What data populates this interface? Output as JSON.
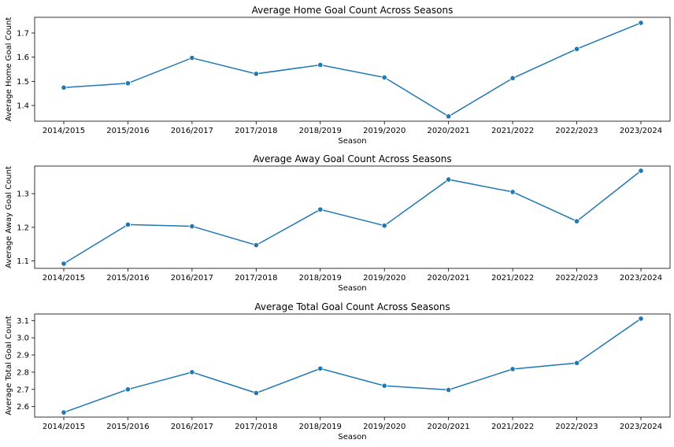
{
  "chart_data": [
    {
      "type": "line",
      "title": "Average Home Goal Count Across Seasons",
      "xlabel": "Season",
      "ylabel": "Average Home Goal Count",
      "categories": [
        "2014/2015",
        "2015/2016",
        "2016/2017",
        "2017/2018",
        "2018/2019",
        "2019/2020",
        "2020/2021",
        "2021/2022",
        "2022/2023",
        "2023/2024"
      ],
      "values": [
        1.474,
        1.492,
        1.597,
        1.531,
        1.568,
        1.516,
        1.355,
        1.513,
        1.634,
        1.742
      ],
      "ylim": [
        1.335,
        1.765
      ],
      "yticks": [
        1.4,
        1.5,
        1.6,
        1.7
      ],
      "grid": false,
      "color": "#1f77b4"
    },
    {
      "type": "line",
      "title": "Average Away Goal Count Across Seasons",
      "xlabel": "Season",
      "ylabel": "Average Away Goal Count",
      "categories": [
        "2014/2015",
        "2015/2016",
        "2016/2017",
        "2017/2018",
        "2018/2019",
        "2019/2020",
        "2020/2021",
        "2021/2022",
        "2022/2023",
        "2023/2024"
      ],
      "values": [
        1.092,
        1.208,
        1.203,
        1.147,
        1.253,
        1.205,
        1.342,
        1.305,
        1.218,
        1.368
      ],
      "ylim": [
        1.078,
        1.382
      ],
      "yticks": [
        1.1,
        1.2,
        1.3
      ],
      "grid": false,
      "color": "#1f77b4"
    },
    {
      "type": "line",
      "title": "Average Total Goal Count Across Seasons",
      "xlabel": "Season",
      "ylabel": "Average Total Goal Count",
      "categories": [
        "2014/2015",
        "2015/2016",
        "2016/2017",
        "2017/2018",
        "2018/2019",
        "2019/2020",
        "2020/2021",
        "2021/2022",
        "2022/2023",
        "2023/2024"
      ],
      "values": [
        2.566,
        2.7,
        2.8,
        2.679,
        2.821,
        2.721,
        2.697,
        2.818,
        2.853,
        3.111
      ],
      "ylim": [
        2.539,
        3.138
      ],
      "yticks": [
        2.6,
        2.7,
        2.8,
        2.9,
        3.0,
        3.1
      ],
      "grid": false,
      "color": "#1f77b4"
    }
  ]
}
